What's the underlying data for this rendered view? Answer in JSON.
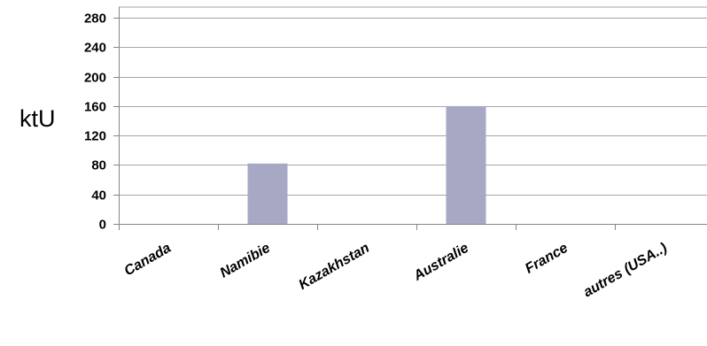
{
  "chart_data": {
    "type": "bar",
    "ylabel": "ktU",
    "xlabel": "",
    "categories": [
      "Canada",
      "Namibie",
      "Kazakhstan",
      "Australie",
      "France",
      "autres (USA..)"
    ],
    "values": [
      0,
      82,
      0,
      160,
      0,
      0
    ],
    "ylim": [
      0,
      280
    ],
    "yticks": [
      0,
      40,
      80,
      120,
      160,
      200,
      240,
      280
    ],
    "grid": true,
    "legend": "none",
    "bar_color": "#a6a8c4"
  }
}
